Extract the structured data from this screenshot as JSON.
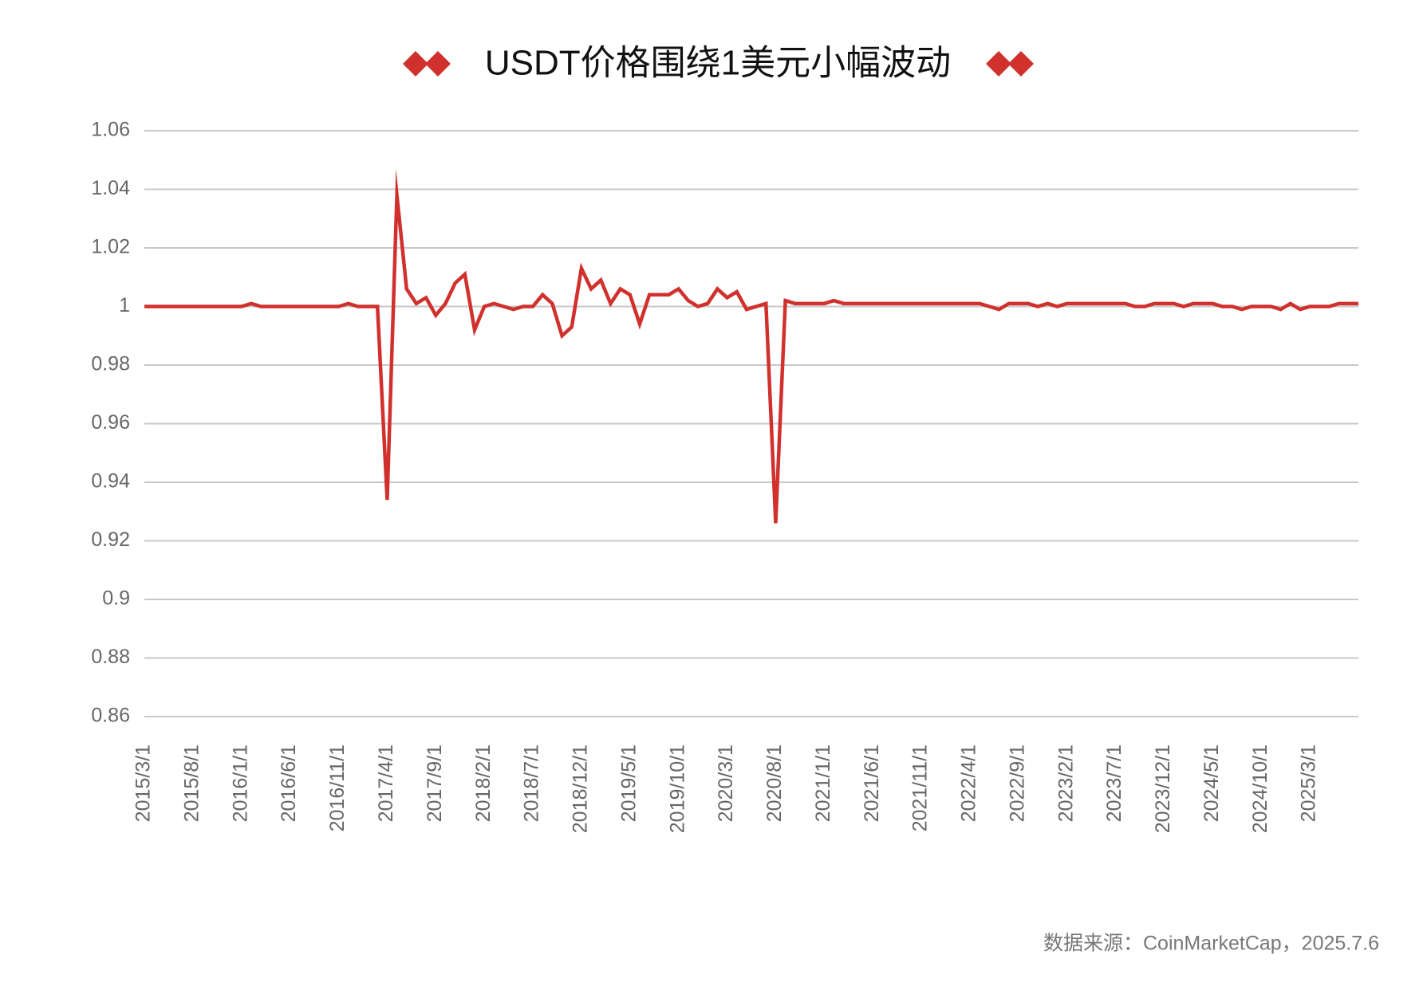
{
  "chart_data": {
    "type": "line",
    "title": "USDT价格围绕1美元小幅波动",
    "source": "数据来源：CoinMarketCap，2025.7.6",
    "categories": [
      "2015/3/1",
      null,
      null,
      null,
      null,
      "2015/8/1",
      null,
      null,
      null,
      null,
      "2016/1/1",
      null,
      null,
      null,
      null,
      "2016/6/1",
      null,
      null,
      null,
      null,
      "2016/11/1",
      null,
      null,
      null,
      null,
      "2017/4/1",
      null,
      null,
      null,
      null,
      "2017/9/1",
      null,
      null,
      null,
      null,
      "2018/2/1",
      null,
      null,
      null,
      null,
      "2018/7/1",
      null,
      null,
      null,
      null,
      "2018/12/1",
      null,
      null,
      null,
      null,
      "2019/5/1",
      null,
      null,
      null,
      null,
      "2019/10/1",
      null,
      null,
      null,
      null,
      "2020/3/1",
      null,
      null,
      null,
      null,
      "2020/8/1",
      null,
      null,
      null,
      null,
      "2021/1/1",
      null,
      null,
      null,
      null,
      "2021/6/1",
      null,
      null,
      null,
      null,
      "2021/11/1",
      null,
      null,
      null,
      null,
      "2022/4/1",
      null,
      null,
      null,
      null,
      "2022/9/1",
      null,
      null,
      null,
      null,
      "2023/2/1",
      null,
      null,
      null,
      null,
      "2023/7/1",
      null,
      null,
      null,
      null,
      "2023/12/1",
      null,
      null,
      null,
      null,
      "2024/5/1",
      null,
      null,
      null,
      null,
      "2024/10/1",
      null,
      null,
      null,
      null,
      "2025/3/1",
      null,
      null,
      null,
      null,
      null
    ],
    "series": [
      {
        "color": "#d0312d",
        "values": [
          1,
          1,
          1,
          1,
          1,
          1,
          1,
          1,
          1,
          1,
          1,
          1.001,
          1,
          1,
          1,
          1,
          1,
          1,
          1,
          1,
          1,
          1.001,
          1,
          1,
          1,
          0.934,
          1.038,
          1.006,
          1.001,
          1.003,
          0.997,
          1.001,
          1.008,
          1.011,
          0.992,
          1.0,
          1.001,
          1.0,
          0.999,
          1.0,
          1.0,
          1.004,
          1.001,
          0.99,
          0.993,
          1.013,
          1.006,
          1.009,
          1.001,
          1.006,
          1.004,
          0.994,
          1.004,
          1.004,
          1.004,
          1.006,
          1.002,
          1.0,
          1.001,
          1.006,
          1.003,
          1.005,
          0.999,
          1.0,
          1.001,
          0.926,
          1.002,
          1.001,
          1.001,
          1.001,
          1.001,
          1.002,
          1.001,
          1.001,
          1.001,
          1.001,
          1.001,
          1.001,
          1.001,
          1.001,
          1.001,
          1.001,
          1.001,
          1.001,
          1.001,
          1.001,
          1.001,
          1.0,
          0.999,
          1.001,
          1.001,
          1.001,
          1.0,
          1.001,
          1.0,
          1.001,
          1.001,
          1.001,
          1.001,
          1.001,
          1.001,
          1.001,
          1.0,
          1.0,
          1.001,
          1.001,
          1.001,
          1.0,
          1.001,
          1.001,
          1.001,
          1.0,
          1.0,
          0.999,
          1.0,
          1.0,
          1.0,
          0.999,
          1.001,
          0.999,
          1.0,
          1.0,
          1.0,
          1.001,
          1.001,
          1.001
        ]
      }
    ],
    "ylim": [
      0.86,
      1.06
    ],
    "yticks": [
      0.86,
      0.88,
      0.9,
      0.92,
      0.94,
      0.96,
      0.98,
      1,
      1.02,
      1.04,
      1.06
    ],
    "grid": true
  }
}
